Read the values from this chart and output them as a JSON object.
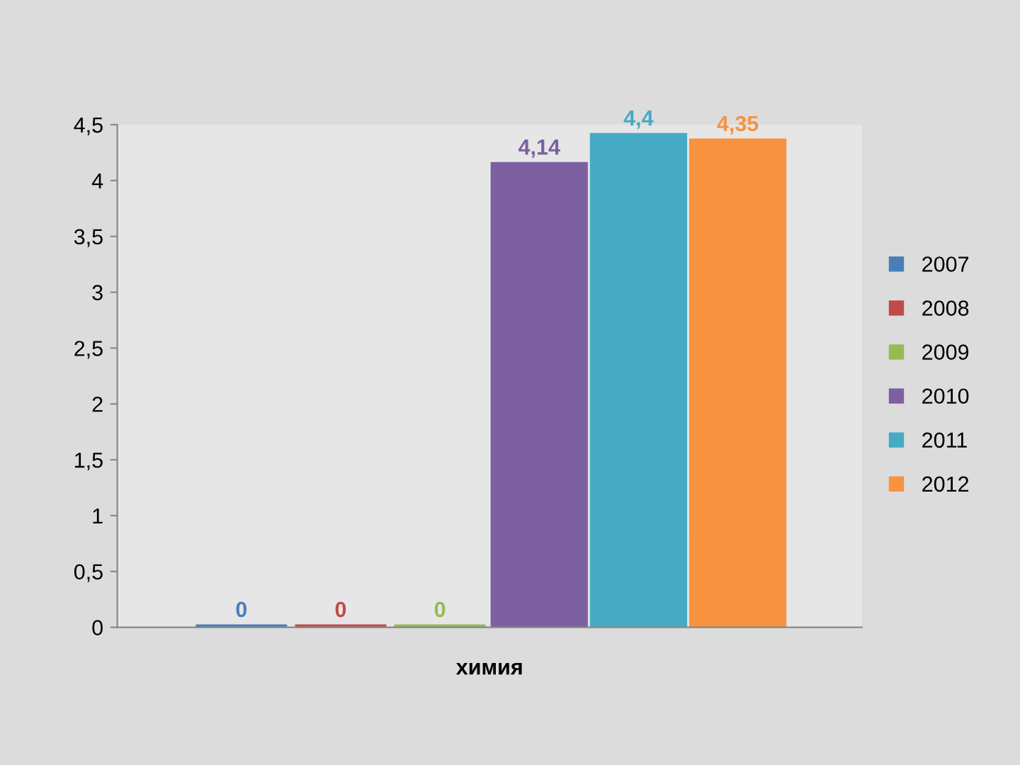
{
  "chart_data": {
    "type": "bar",
    "categories": [
      "химия"
    ],
    "series": [
      {
        "name": "2007",
        "color": "#4a7ebb",
        "values": [
          0
        ],
        "value_labels": [
          "0"
        ]
      },
      {
        "name": "2008",
        "color": "#be4b48",
        "values": [
          0
        ],
        "value_labels": [
          "0"
        ]
      },
      {
        "name": "2009",
        "color": "#98b954",
        "values": [
          0
        ],
        "value_labels": [
          "0"
        ]
      },
      {
        "name": "2010",
        "color": "#7d60a0",
        "values": [
          4.14
        ],
        "value_labels": [
          "4,14"
        ]
      },
      {
        "name": "2011",
        "color": "#46aac5",
        "values": [
          4.4
        ],
        "value_labels": [
          "4,4"
        ]
      },
      {
        "name": "2012",
        "color": "#f69240",
        "values": [
          4.35
        ],
        "value_labels": [
          "4,35"
        ]
      }
    ],
    "ylim": [
      0,
      4.5
    ],
    "yticks": [
      0,
      {
        "value": 0.5,
        "label": "0,5"
      },
      1,
      {
        "value": 1.5,
        "label": "1,5"
      },
      2,
      {
        "value": 2.5,
        "label": "2,5"
      },
      3,
      {
        "value": 3.5,
        "label": "3,5"
      },
      4,
      {
        "value": 4.5,
        "label": "4,5"
      }
    ],
    "grid": false,
    "legend": "right"
  }
}
